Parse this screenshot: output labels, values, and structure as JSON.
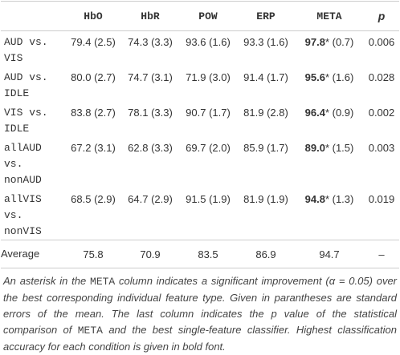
{
  "table": {
    "header": [
      "HbO",
      "HbR",
      "POW",
      "ERP",
      "META",
      "p"
    ],
    "rows": [
      {
        "label": "AUD vs. VIS",
        "cells": [
          "79.4 (2.5)",
          "74.3 (3.3)",
          "93.6 (1.6)",
          "93.3 (1.6)",
          {
            "bold": "97.8",
            "rest": "* (0.7)"
          },
          "0.006"
        ]
      },
      {
        "label": "AUD vs. IDLE",
        "cells": [
          "80.0 (2.7)",
          "74.7 (3.1)",
          "71.9 (3.0)",
          "91.4 (1.7)",
          {
            "bold": "95.6",
            "rest": "* (1.6)"
          },
          "0.028"
        ]
      },
      {
        "label": "VIS vs. IDLE",
        "cells": [
          "83.8 (2.7)",
          "78.1 (3.3)",
          "90.7 (1.7)",
          "81.9 (2.8)",
          {
            "bold": "96.4",
            "rest": "* (0.9)"
          },
          "0.002"
        ]
      },
      {
        "label": "allAUD vs. nonAUD",
        "cells": [
          "67.2 (3.1)",
          "62.8 (3.3)",
          "69.7 (2.0)",
          "85.9 (1.7)",
          {
            "bold": "89.0",
            "rest": "* (1.5)"
          },
          "0.003"
        ]
      },
      {
        "label": "allVIS vs. nonVIS",
        "cells": [
          "68.5 (2.9)",
          "64.7 (2.9)",
          "91.5 (1.9)",
          "81.9 (1.9)",
          {
            "bold": "94.8",
            "rest": "* (1.3)"
          },
          "0.019"
        ]
      }
    ],
    "average": {
      "label": "Average",
      "cells": [
        "75.8",
        "70.9",
        "83.5",
        "86.9",
        "94.7",
        "–"
      ]
    }
  },
  "caption": [
    "An asterisk in the ",
    "META",
    " column indicates a significant improvement (",
    "α",
    " = 0.05) over the best corresponding individual feature type. Given in parantheses are standard errors of the mean. The last column indicates the p value of the statistical comparison of ",
    "META",
    " and the best single-feature classifier. Highest classification accuracy for each condition is given in bold font."
  ]
}
